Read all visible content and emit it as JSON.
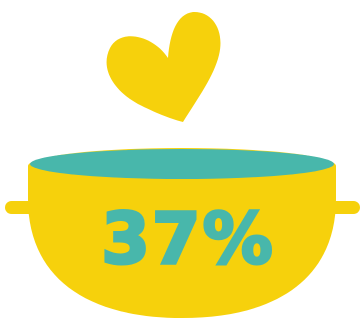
{
  "illustration": {
    "percentage_text": "37%",
    "percentage_value": 37,
    "icons": [
      "heart-icon",
      "pot-icon"
    ],
    "colors": {
      "yellow": "#f6d10c",
      "teal": "#48b7ab",
      "background": "#ffffff"
    }
  }
}
